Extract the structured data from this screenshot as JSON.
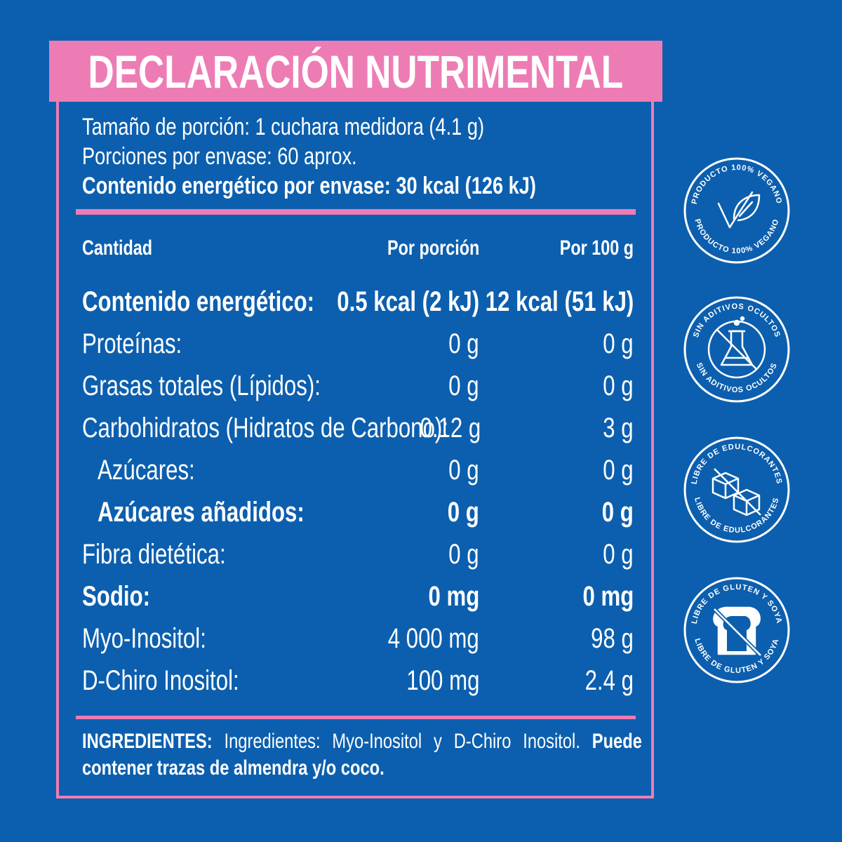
{
  "header": {
    "title": "DECLARACIÓN NUTRIMENTAL"
  },
  "serving": {
    "size": "Tamaño de porción: 1 cuchara medidora (4.1 g)",
    "portions": "Porciones por envase: 60 aprox.",
    "energy_per_container": "Contenido energético por envase: 30 kcal (126 kJ)"
  },
  "table": {
    "headers": {
      "label": "Cantidad",
      "per_portion": "Por porción",
      "per_100g": "Por 100 g"
    },
    "rows": [
      {
        "label": "Contenido energético:",
        "per_portion": "0.5 kcal (2 kJ)",
        "per_100g": "12 kcal (51 kJ)"
      },
      {
        "label": "Proteínas:",
        "per_portion": "0 g",
        "per_100g": "0 g"
      },
      {
        "label": "Grasas totales (Lípidos):",
        "per_portion": "0 g",
        "per_100g": "0 g"
      },
      {
        "label": "Carbohidratos (Hidratos de Carbono):",
        "per_portion": "0.12 g",
        "per_100g": "3 g"
      },
      {
        "label": "Azúcares:",
        "per_portion": "0 g",
        "per_100g": "0 g"
      },
      {
        "label": "Azúcares añadidos:",
        "per_portion": "0 g",
        "per_100g": "0 g"
      },
      {
        "label": "Fibra dietética:",
        "per_portion": "0 g",
        "per_100g": "0 g"
      },
      {
        "label": "Sodio:",
        "per_portion": "0 mg",
        "per_100g": "0 mg"
      },
      {
        "label": "Myo-Inositol:",
        "per_portion": "4 000 mg",
        "per_100g": "98 g"
      },
      {
        "label": "D-Chiro Inositol:",
        "per_portion": "100 mg",
        "per_100g": "2.4 g"
      }
    ]
  },
  "ingredients": {
    "heading": "INGREDIENTES:",
    "text": "Ingredientes: Myo-Inositol y D-Chiro Inositol.",
    "warning": "Puede contener trazas de almendra y/o coco."
  },
  "badges": {
    "vegano": {
      "text": "PRODUCTO 100% VEGANO",
      "icon": "vegan-leaf-icon"
    },
    "aditivos": {
      "text": "SIN ADITIVOS OCULTOS",
      "icon": "crossed-flask-icon"
    },
    "edulcorantes": {
      "text": "LIBRE DE EDULCORANTES",
      "icon": "crossed-sugar-cubes-icon"
    },
    "gluten": {
      "text": "LIBRE DE GLUTEN Y SOYA",
      "icon": "crossed-bread-icon"
    }
  },
  "colors": {
    "background": "#0c5fae",
    "accent": "#ee7cb4",
    "text": "#ffffff"
  }
}
